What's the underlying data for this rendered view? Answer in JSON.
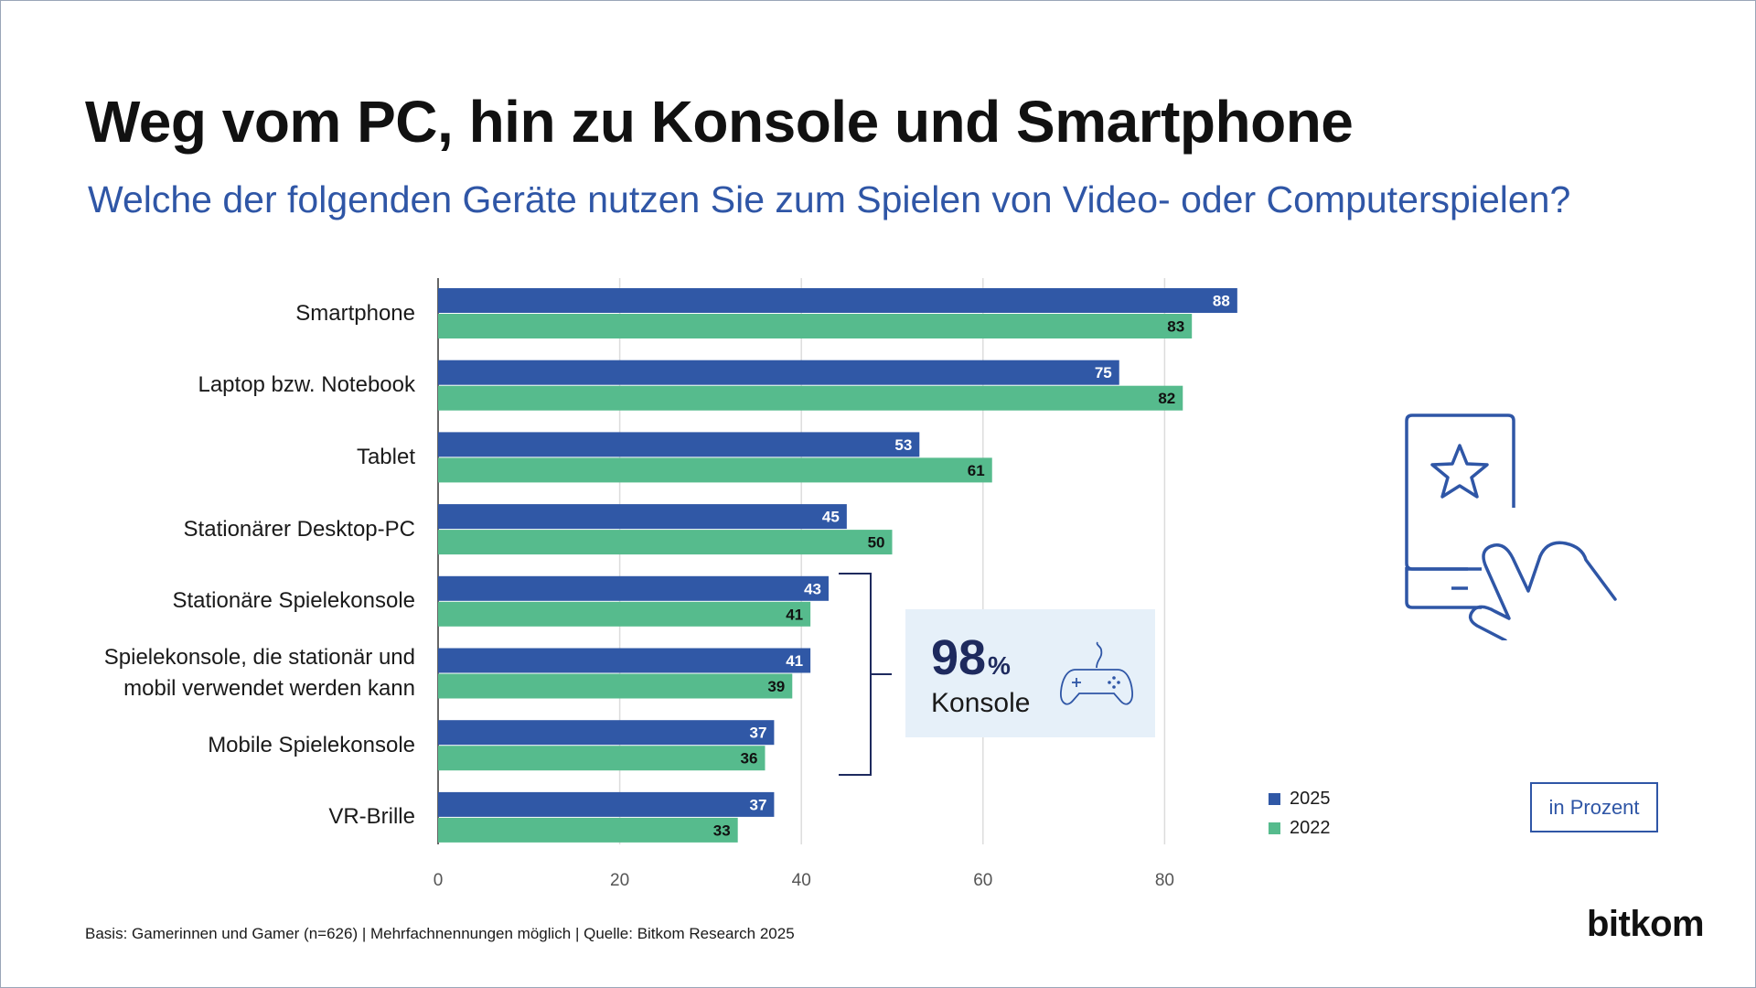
{
  "title": "Weg vom PC, hin zu Konsole und Smartphone",
  "subtitle": "Welche der folgenden Geräte nutzen Sie zum Spielen von Video- oder Computerspielen?",
  "chart_data": {
    "type": "bar",
    "orientation": "horizontal",
    "categories": [
      "Smartphone",
      "Laptop bzw. Notebook",
      "Tablet",
      "Stationärer Desktop-PC",
      "Stationäre Spielekonsole",
      "Spielekonsole, die stationär und mobil verwendet werden kann",
      "Mobile Spielekonsole",
      "VR-Brille"
    ],
    "category_lines": [
      [
        "Smartphone"
      ],
      [
        "Laptop bzw. Notebook"
      ],
      [
        "Tablet"
      ],
      [
        "Stationärer Desktop-PC"
      ],
      [
        "Stationäre Spielekonsole"
      ],
      [
        "Spielekonsole, die stationär und",
        "mobil verwendet werden kann"
      ],
      [
        "Mobile Spielekonsole"
      ],
      [
        "VR-Brille"
      ]
    ],
    "series": [
      {
        "name": "2025",
        "color": "#3058a6",
        "label_color": "#ffffff",
        "values": [
          88,
          75,
          53,
          45,
          43,
          41,
          37,
          37
        ]
      },
      {
        "name": "2022",
        "color": "#56bb8d",
        "label_color": "#111111",
        "values": [
          83,
          82,
          61,
          50,
          41,
          39,
          36,
          33
        ]
      }
    ],
    "x_ticks": [
      0,
      20,
      40,
      60,
      80
    ],
    "xlim": [
      0,
      88
    ],
    "grid": true,
    "legend_position": "bottom-right",
    "unit_label": "in Prozent"
  },
  "annotation": {
    "value": "98",
    "percent_sign": "%",
    "label": "Konsole"
  },
  "footnote": "Basis: Gamerinnen und Gamer (n=626) | Mehrfachnennungen möglich | Quelle: Bitkom Research 2025",
  "logo_text": "bitkom",
  "icons": [
    "smartphone-touch-icon",
    "gamepad-icon"
  ]
}
